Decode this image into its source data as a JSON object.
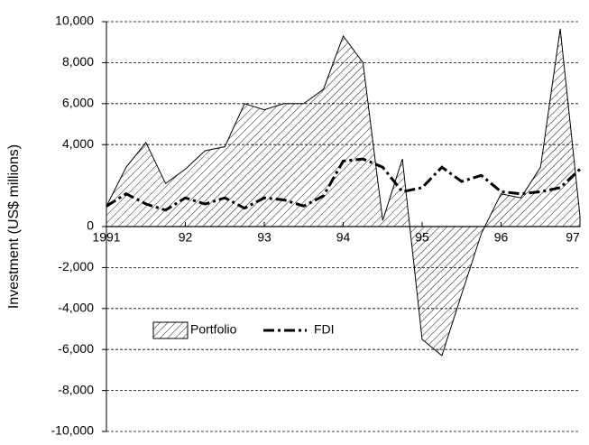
{
  "chart_data": {
    "type": "area",
    "y_label": "Investment (US$ millions)",
    "x": [
      1991,
      1991.25,
      1991.5,
      1991.75,
      1992,
      1992.25,
      1992.5,
      1992.75,
      1993,
      1993.25,
      1993.5,
      1993.75,
      1994,
      1994.25,
      1994.5,
      1994.75,
      1995,
      1995.25,
      1995.5,
      1995.75,
      1996,
      1996.25,
      1996.5,
      1996.75,
      1997
    ],
    "series": [
      {
        "name": "Portfolio",
        "type": "area",
        "color": "#000000",
        "values": [
          1000,
          2900,
          4100,
          2100,
          2800,
          3700,
          3900,
          6000,
          5700,
          6000,
          6000,
          6700,
          9300,
          8000,
          300,
          3300,
          -5500,
          -6300,
          -3300,
          -350,
          1600,
          1400,
          2900,
          9650,
          500
        ]
      },
      {
        "name": "FDI",
        "type": "line",
        "color": "#000000",
        "values": [
          1000,
          1600,
          1100,
          800,
          1400,
          1100,
          1400,
          900,
          1400,
          1300,
          1000,
          1500,
          3200,
          3300,
          2900,
          1700,
          1900,
          2900,
          2200,
          2500,
          1700,
          1600,
          1700,
          1900,
          2800
        ]
      }
    ],
    "xlim": [
      1991,
      1997
    ],
    "xticks": [
      1991,
      {
        "value": 1992,
        "label": "92"
      },
      {
        "value": 1993,
        "label": "93"
      },
      {
        "value": 1994,
        "label": "94"
      },
      {
        "value": 1995,
        "label": "95"
      },
      {
        "value": 1996,
        "label": "96"
      },
      {
        "value": 1997,
        "label": "97"
      }
    ],
    "ylim": [
      -10000,
      10000
    ],
    "yticks": [
      {
        "value": 10000,
        "label": "10,000"
      },
      {
        "value": 8000,
        "label": "8,000"
      },
      {
        "value": 6000,
        "label": "6,000"
      },
      {
        "value": 4000,
        "label": "4,000"
      },
      0,
      {
        "value": -2000,
        "label": "-2,000"
      },
      {
        "value": -4000,
        "label": "-4,000"
      },
      {
        "value": -6000,
        "label": "-6,000"
      },
      {
        "value": -8000,
        "label": "-8,000"
      },
      {
        "value": -10000,
        "label": "-10,000"
      }
    ],
    "grid": true,
    "legend": "bottom-left"
  }
}
